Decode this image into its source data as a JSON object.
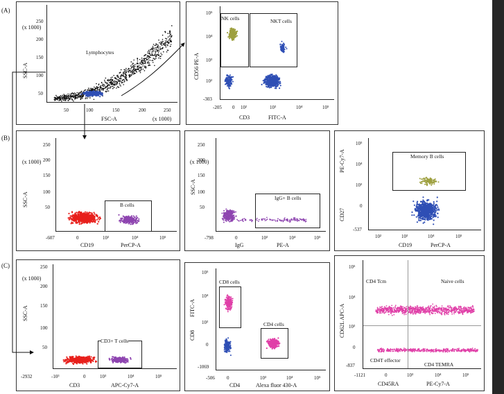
{
  "rows": [
    "(A)",
    "(B)",
    "(C)"
  ],
  "colors": {
    "scatter_black": "#111111",
    "scatter_blue": "#2f4fb5",
    "scatter_olive": "#9ea040",
    "scatter_red": "#e8201c",
    "scatter_purple": "#8e45b0",
    "scatter_magenta": "#e040a8",
    "sidebar": "#262626"
  },
  "panels": {
    "a1": {
      "ylabel": "SSC-A",
      "ymult": "(x 1000)",
      "xlabel": "FSC-A",
      "xmult": "(x 1000)",
      "yticks": [
        "250",
        "200",
        "150",
        "100",
        "50"
      ],
      "xticks": [
        "50",
        "100",
        "150",
        "200",
        "250"
      ],
      "gate": "Lymphocytes"
    },
    "a2": {
      "ylabel": "CD56  PE-A",
      "xlabel_marker": "CD3",
      "xlabel_channel": "FITC-A",
      "yticks": [
        "10⁵",
        "10⁴",
        "10³",
        "10²",
        "-303"
      ],
      "xticks": [
        "-205",
        "0",
        "10²",
        "10³",
        "10⁴",
        "10⁵"
      ],
      "gate1": "NK cells",
      "gate2": "NKT cells"
    },
    "b1": {
      "ylabel": "SSC-A",
      "ymult": "(x 1000)",
      "xlabel_marker": "CD19",
      "xlabel_channel": "PerCP-A",
      "yticks": [
        "250",
        "200",
        "150",
        "100",
        "50"
      ],
      "xticks": [
        "-607",
        "0",
        "10³",
        "10⁴",
        "10⁵"
      ],
      "gate": "B cells"
    },
    "b2": {
      "ylabel": "SSC-A",
      "ymult": "(x 1000)",
      "xlabel_marker": "IgG",
      "xlabel_channel": "PE-A",
      "yticks": [
        "250",
        "200",
        "150",
        "100",
        "50"
      ],
      "xticks": [
        "-798",
        "0",
        "10³",
        "10⁴",
        "10⁵"
      ],
      "gate": "IgG+ B cells"
    },
    "b3": {
      "ylabel": "PE-Cy7-A",
      "ylabel2": "CD27",
      "xlabel_marker": "CD19",
      "xlabel_channel": "PerCP-A",
      "yticks": [
        "10⁵",
        "10⁴",
        "10³",
        "0",
        "-537"
      ],
      "xticks": [
        "10²",
        "10³",
        "10⁴",
        "10⁵"
      ],
      "gate": "Memory B cells"
    },
    "c1": {
      "ylabel": "SSC-A",
      "ymult": "(x 1000)",
      "xlabel_marker": "CD3",
      "xlabel_channel": "APC-Cy7-A",
      "yticks": [
        "250",
        "200",
        "150",
        "100",
        "50"
      ],
      "xticks": [
        "-2932",
        "-10³",
        "0",
        "10³",
        "10⁴",
        "10⁵"
      ],
      "gate": "CD3+ T cells"
    },
    "c2": {
      "ylabel": "FITC-A",
      "ylabel2": "CD8",
      "xlabel_marker": "CD4",
      "xlabel_channel": "Alexa fluor 430-A",
      "yticks": [
        "10⁵",
        "10⁴",
        "10³",
        "0",
        "-1069"
      ],
      "xticks": [
        "-506",
        "0",
        "10³",
        "10⁴",
        "10⁵"
      ],
      "gate1": "CD8 cells",
      "gate2": "CD4 cells"
    },
    "c3": {
      "ylabel": "CD62L APC-A",
      "xlabel_marker": "CD45RA",
      "xlabel_channel": "PE-Cy7-A",
      "yticks": [
        "10⁵",
        "10⁴",
        "10³",
        "0",
        "-837"
      ],
      "xticks": [
        "-1121",
        "0",
        "10³",
        "10⁴",
        "10⁵"
      ],
      "q1": "CD4 Tcm",
      "q2": "Naive cells",
      "q3": "CD4T effector",
      "q4": "CD4 TEMRA"
    }
  }
}
